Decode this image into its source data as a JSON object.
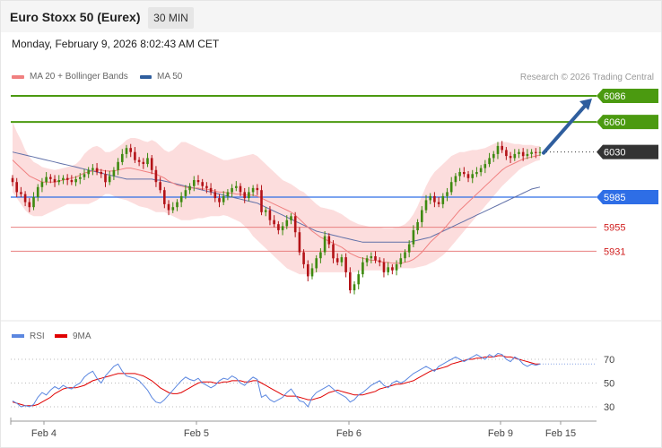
{
  "header": {
    "title": "Euro Stoxx 50 (Eurex)",
    "timeframe": "30 MIN"
  },
  "datetime": "Monday, February 9, 2026 8:02:43 AM CET",
  "legend": {
    "ma20_bb": "MA 20 + Bollinger Bands",
    "ma50": "MA 50"
  },
  "credit": "Research © 2026 Trading Central",
  "colors": {
    "green": "#4b9a10",
    "blue": "#2e6ee6",
    "red_line": "#e88080",
    "red_text": "#d12020",
    "band": "#fcd9d9",
    "ma20": "#f08080",
    "ma50": "#6070a8",
    "candle_up": "#3e8a10",
    "candle_down": "#b31217",
    "current": "#333333",
    "arrow": "#2f5e9e",
    "rsi": "#5b87e0",
    "rsi_ma": "#e00000"
  },
  "chart_data": [
    {
      "type": "candlestick",
      "title": "Euro Stoxx 50 (Eurex)",
      "ylim": [
        5870,
        6105
      ],
      "x_ticks": [
        "Feb 4",
        "Feb 5",
        "Feb 6",
        "Feb 9",
        "Feb 15"
      ],
      "levels": [
        {
          "label": "6086",
          "value": 6086,
          "kind": "resistance"
        },
        {
          "label": "6060",
          "value": 6060,
          "kind": "resistance"
        },
        {
          "label": "6030",
          "value": 6030,
          "kind": "current"
        },
        {
          "label": "5985",
          "value": 5985,
          "kind": "pivot"
        },
        {
          "label": "5955",
          "value": 5955,
          "kind": "support"
        },
        {
          "label": "5931",
          "value": 5931,
          "kind": "support"
        }
      ],
      "close": [
        6000,
        5990,
        5988,
        5980,
        5975,
        5985,
        5995,
        6000,
        6005,
        6003,
        6000,
        6002,
        6004,
        6002,
        6000,
        6003,
        6005,
        6008,
        6012,
        6014,
        6010,
        6008,
        6000,
        6006,
        6012,
        6020,
        6028,
        6034,
        6030,
        6022,
        6020,
        6018,
        6024,
        6012,
        6000,
        5992,
        5978,
        5972,
        5975,
        5980,
        5986,
        5992,
        5996,
        6002,
        6000,
        5996,
        5994,
        5990,
        5984,
        5980,
        5986,
        5990,
        5994,
        5996,
        5990,
        5984,
        5990,
        5994,
        5992,
        5970,
        5972,
        5962,
        5958,
        5952,
        5956,
        5962,
        5966,
        5950,
        5930,
        5918,
        5906,
        5914,
        5924,
        5930,
        5946,
        5938,
        5924,
        5920,
        5925,
        5910,
        5892,
        5898,
        5908,
        5920,
        5924,
        5926,
        5922,
        5920,
        5910,
        5915,
        5912,
        5918,
        5924,
        5930,
        5938,
        5952,
        5960,
        5972,
        5982,
        5986,
        5980,
        5978,
        5986,
        5990,
        6000,
        6006,
        6010,
        6008,
        6004,
        6008,
        6010,
        6014,
        6018,
        6024,
        6028,
        6036,
        6032,
        6026,
        6024,
        6028,
        6030,
        6026,
        6028,
        6030,
        6029,
        6030
      ],
      "ma20": [
        6022,
        6018,
        6014,
        6010,
        6006,
        6004,
        6002,
        6000,
        6000,
        6000,
        6000,
        6001,
        6002,
        6003,
        6004,
        6005,
        6007,
        6009,
        6010,
        6011,
        6012,
        6012,
        6011,
        6011,
        6011,
        6012,
        6013,
        6014,
        6014,
        6013,
        6012,
        6011,
        6010,
        6009,
        6008,
        6006,
        6004,
        6001,
        5999,
        5997,
        5996,
        5995,
        5994,
        5994,
        5994,
        5993,
        5993,
        5992,
        5991,
        5990,
        5990,
        5989,
        5989,
        5988,
        5988,
        5987,
        5987,
        5987,
        5986,
        5984,
        5982,
        5980,
        5978,
        5976,
        5974,
        5972,
        5970,
        5967,
        5963,
        5959,
        5955,
        5951,
        5948,
        5945,
        5943,
        5941,
        5939,
        5937,
        5935,
        5932,
        5929,
        5927,
        5925,
        5924,
        5923,
        5922,
        5922,
        5921,
        5920,
        5920,
        5919,
        5919,
        5919,
        5920,
        5921,
        5923,
        5926,
        5930,
        5935,
        5940,
        5944,
        5948,
        5952,
        5957,
        5962,
        5967,
        5972,
        5976,
        5980,
        5984,
        5988,
        5992,
        5996,
        6000,
        6004,
        6008,
        6012,
        6015,
        6017,
        6019,
        6021,
        6023,
        6024,
        6025,
        6026,
        6027
      ],
      "ma50": [
        6030,
        6029,
        6028,
        6027,
        6026,
        6025,
        6024,
        6023,
        6022,
        6021,
        6020,
        6019,
        6018,
        6017,
        6016,
        6015,
        6014,
        6013,
        6012,
        6011,
        6010,
        6009,
        6008,
        6007,
        6006,
        6005,
        6004,
        6003,
        6003,
        6003,
        6003,
        6003,
        6003,
        6003,
        6002,
        6002,
        6001,
        6000,
        5999,
        5998,
        5997,
        5996,
        5995,
        5994,
        5993,
        5992,
        5991,
        5990,
        5989,
        5988,
        5987,
        5986,
        5985,
        5984,
        5983,
        5982,
        5981,
        5980,
        5979,
        5977,
        5975,
        5973,
        5971,
        5969,
        5967,
        5965,
        5963,
        5961,
        5959,
        5957,
        5955,
        5953,
        5951,
        5950,
        5949,
        5948,
        5947,
        5946,
        5945,
        5944,
        5943,
        5942,
        5941,
        5940,
        5940,
        5940,
        5940,
        5940,
        5940,
        5940,
        5940,
        5940,
        5940,
        5940,
        5940,
        5941,
        5942,
        5943,
        5944,
        5945,
        5947,
        5949,
        5951,
        5953,
        5955,
        5957,
        5959,
        5961,
        5963,
        5965,
        5967,
        5969,
        5971,
        5973,
        5975,
        5977,
        5979,
        5981,
        5983,
        5985,
        5987,
        5989,
        5991,
        5993,
        5994,
        5995
      ],
      "band_upper": [
        6060,
        6050,
        6042,
        6032,
        6025,
        6020,
        6018,
        6015,
        6014,
        6013,
        6012,
        6013,
        6014,
        6015,
        6016,
        6018,
        6022,
        6028,
        6032,
        6035,
        6036,
        6034,
        6030,
        6030,
        6032,
        6035,
        6038,
        6042,
        6044,
        6044,
        6043,
        6041,
        6040,
        6042,
        6040,
        6036,
        6032,
        6030,
        6032,
        6036,
        6040,
        6040,
        6038,
        6036,
        6034,
        6032,
        6030,
        6028,
        6026,
        6024,
        6022,
        6022,
        6023,
        6024,
        6025,
        6026,
        6027,
        6028,
        6026,
        6022,
        6018,
        6014,
        6010,
        6006,
        6002,
        6000,
        5998,
        5995,
        5992,
        5990,
        5986,
        5982,
        5978,
        5975,
        5974,
        5973,
        5972,
        5970,
        5968,
        5965,
        5962,
        5960,
        5958,
        5957,
        5956,
        5955,
        5955,
        5955,
        5954,
        5954,
        5954,
        5955,
        5956,
        5958,
        5962,
        5968,
        5976,
        5986,
        5996,
        6004,
        6010,
        6014,
        6018,
        6022,
        6026,
        6028,
        6030,
        6030,
        6031,
        6032,
        6032,
        6033,
        6034,
        6036,
        6038,
        6040,
        6040,
        6040,
        6039,
        6038,
        6038,
        6037,
        6037,
        6037,
        6036,
        6036
      ],
      "band_lower": [
        5990,
        5984,
        5978,
        5972,
        5968,
        5966,
        5966,
        5966,
        5968,
        5970,
        5972,
        5974,
        5976,
        5978,
        5978,
        5978,
        5978,
        5978,
        5978,
        5980,
        5982,
        5985,
        5988,
        5988,
        5986,
        5984,
        5983,
        5982,
        5980,
        5978,
        5976,
        5975,
        5974,
        5972,
        5970,
        5970,
        5970,
        5968,
        5966,
        5964,
        5962,
        5962,
        5962,
        5963,
        5964,
        5964,
        5965,
        5966,
        5966,
        5966,
        5967,
        5966,
        5964,
        5962,
        5960,
        5956,
        5952,
        5946,
        5942,
        5938,
        5934,
        5930,
        5926,
        5922,
        5918,
        5914,
        5912,
        5910,
        5908,
        5908,
        5908,
        5908,
        5910,
        5910,
        5910,
        5910,
        5910,
        5910,
        5910,
        5910,
        5910,
        5910,
        5911,
        5912,
        5912,
        5912,
        5912,
        5912,
        5912,
        5912,
        5912,
        5913,
        5914,
        5914,
        5914,
        5914,
        5915,
        5916,
        5917,
        5919,
        5921,
        5924,
        5927,
        5931,
        5936,
        5941,
        5946,
        5951,
        5956,
        5961,
        5966,
        5971,
        5976,
        5981,
        5986,
        5991,
        5996,
        6000,
        6004,
        6008,
        6012,
        6015,
        6017,
        6019,
        6021,
        6022
      ]
    },
    {
      "type": "line",
      "title": "RSI",
      "ylim": [
        20,
        80
      ],
      "y_ticks": [
        70,
        50,
        30
      ],
      "series": [
        {
          "name": "RSI",
          "values": [
            35,
            33,
            30,
            31,
            30,
            32,
            38,
            42,
            40,
            44,
            47,
            45,
            48,
            46,
            45,
            48,
            50,
            55,
            58,
            60,
            54,
            50,
            56,
            60,
            64,
            66,
            60,
            56,
            55,
            54,
            52,
            48,
            44,
            38,
            34,
            33,
            36,
            40,
            44,
            48,
            52,
            55,
            53,
            52,
            54,
            50,
            48,
            46,
            48,
            52,
            54,
            53,
            56,
            54,
            50,
            48,
            52,
            55,
            53,
            38,
            40,
            36,
            34,
            36,
            38,
            42,
            45,
            40,
            35,
            34,
            30,
            38,
            42,
            44,
            46,
            48,
            45,
            42,
            40,
            38,
            34,
            36,
            40,
            42,
            45,
            48,
            50,
            52,
            48,
            46,
            50,
            52,
            50,
            52,
            55,
            58,
            60,
            62,
            64,
            62,
            60,
            64,
            66,
            68,
            70,
            72,
            70,
            68,
            70,
            72,
            74,
            72,
            70,
            74,
            72,
            75,
            74,
            70,
            68,
            72,
            70,
            66,
            64,
            66,
            65,
            66
          ]
        },
        {
          "name": "9MA",
          "values": [
            34,
            33,
            32,
            31,
            31,
            31,
            32,
            34,
            36,
            38,
            41,
            43,
            45,
            46,
            46,
            46,
            47,
            48,
            50,
            52,
            53,
            54,
            55,
            56,
            57,
            58,
            58,
            58,
            58,
            58,
            57,
            56,
            54,
            52,
            49,
            46,
            44,
            42,
            41,
            41,
            42,
            44,
            46,
            48,
            50,
            51,
            51,
            51,
            50,
            50,
            51,
            51,
            52,
            52,
            52,
            51,
            51,
            52,
            52,
            50,
            48,
            46,
            44,
            42,
            40,
            39,
            39,
            39,
            38,
            37,
            36,
            36,
            37,
            38,
            40,
            42,
            43,
            44,
            43,
            42,
            41,
            40,
            40,
            40,
            41,
            42,
            43,
            45,
            46,
            47,
            48,
            49,
            49,
            50,
            51,
            52,
            54,
            56,
            58,
            60,
            61,
            62,
            63,
            64,
            66,
            67,
            68,
            69,
            70,
            70,
            71,
            71,
            72,
            72,
            72,
            73,
            73,
            72,
            72,
            71,
            70,
            69,
            68,
            67,
            66,
            66
          ]
        }
      ]
    }
  ]
}
